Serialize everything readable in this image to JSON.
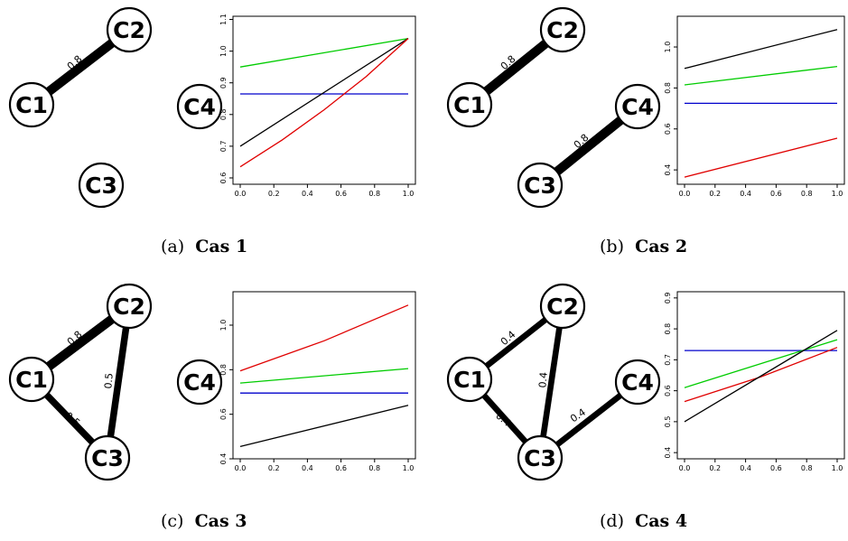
{
  "chart_data": [
    {
      "type": "line",
      "caption_letter": "(a)",
      "caption_title": "Cas 1",
      "network": {
        "nodes": [
          "C1",
          "C2",
          "C3",
          "C4"
        ],
        "edges": [
          {
            "from": "C1",
            "to": "C2",
            "weight": "0.8"
          }
        ]
      },
      "x_ticks": [
        "0.0",
        "0.2",
        "0.4",
        "0.6",
        "0.8",
        "1.0"
      ],
      "y_ticks": [
        "0.6",
        "0.7",
        "0.8",
        "0.9",
        "1.0",
        "1.1"
      ],
      "xlim": [
        0,
        1
      ],
      "ylim": [
        0.58,
        1.11
      ],
      "series": [
        {
          "color": "#00cc00",
          "x": [
            0,
            1
          ],
          "y": [
            0.95,
            1.04
          ]
        },
        {
          "color": "#0000cc",
          "x": [
            0,
            1
          ],
          "y": [
            0.865,
            0.865
          ]
        },
        {
          "color": "#000000",
          "x": [
            0,
            1
          ],
          "y": [
            0.7,
            1.04
          ]
        },
        {
          "color": "#e00000",
          "x": [
            0,
            0.25,
            0.5,
            0.75,
            1
          ],
          "y": [
            0.635,
            0.72,
            0.815,
            0.92,
            1.04
          ]
        }
      ]
    },
    {
      "type": "line",
      "caption_letter": "(b)",
      "caption_title": "Cas 2",
      "network": {
        "nodes": [
          "C1",
          "C2",
          "C3",
          "C4"
        ],
        "edges": [
          {
            "from": "C1",
            "to": "C2",
            "weight": "0.8"
          },
          {
            "from": "C3",
            "to": "C4",
            "weight": "0.8"
          }
        ]
      },
      "x_ticks": [
        "0.0",
        "0.2",
        "0.4",
        "0.6",
        "0.8",
        "1.0"
      ],
      "y_ticks": [
        "0.4",
        "0.6",
        "0.8",
        "1.0"
      ],
      "xlim": [
        0,
        1
      ],
      "ylim": [
        0.33,
        1.15
      ],
      "series": [
        {
          "color": "#000000",
          "x": [
            0,
            1
          ],
          "y": [
            0.895,
            1.085
          ]
        },
        {
          "color": "#00cc00",
          "x": [
            0,
            1
          ],
          "y": [
            0.815,
            0.905
          ]
        },
        {
          "color": "#0000cc",
          "x": [
            0,
            1
          ],
          "y": [
            0.725,
            0.725
          ]
        },
        {
          "color": "#e00000",
          "x": [
            0,
            1
          ],
          "y": [
            0.365,
            0.555
          ]
        }
      ]
    },
    {
      "type": "line",
      "caption_letter": "(c)",
      "caption_title": "Cas 3",
      "network": {
        "nodes": [
          "C1",
          "C2",
          "C3",
          "C4"
        ],
        "edges": [
          {
            "from": "C1",
            "to": "C2",
            "weight": "0.8"
          },
          {
            "from": "C2",
            "to": "C3",
            "weight": "0.5"
          },
          {
            "from": "C1",
            "to": "C3",
            "weight": "0.5"
          }
        ]
      },
      "x_ticks": [
        "0.0",
        "0.2",
        "0.4",
        "0.6",
        "0.8",
        "1.0"
      ],
      "y_ticks": [
        "0.4",
        "0.6",
        "0.8",
        "1.0"
      ],
      "xlim": [
        0,
        1
      ],
      "ylim": [
        0.4,
        1.15
      ],
      "series": [
        {
          "color": "#e00000",
          "x": [
            0,
            0.5,
            1
          ],
          "y": [
            0.795,
            0.93,
            1.09
          ]
        },
        {
          "color": "#00cc00",
          "x": [
            0,
            1
          ],
          "y": [
            0.74,
            0.805
          ]
        },
        {
          "color": "#0000cc",
          "x": [
            0,
            1
          ],
          "y": [
            0.695,
            0.695
          ]
        },
        {
          "color": "#000000",
          "x": [
            0,
            1
          ],
          "y": [
            0.455,
            0.64
          ]
        }
      ]
    },
    {
      "type": "line",
      "caption_letter": "(d)",
      "caption_title": "Cas 4",
      "network": {
        "nodes": [
          "C1",
          "C2",
          "C3",
          "C4"
        ],
        "edges": [
          {
            "from": "C1",
            "to": "C2",
            "weight": "0.4"
          },
          {
            "from": "C2",
            "to": "C3",
            "weight": "0.4"
          },
          {
            "from": "C1",
            "to": "C3",
            "weight": "0.4"
          },
          {
            "from": "C3",
            "to": "C4",
            "weight": "0.4"
          }
        ]
      },
      "x_ticks": [
        "0.0",
        "0.2",
        "0.4",
        "0.6",
        "0.8",
        "1.0"
      ],
      "y_ticks": [
        "0.4",
        "0.5",
        "0.6",
        "0.7",
        "0.8",
        "0.9"
      ],
      "xlim": [
        0,
        1
      ],
      "ylim": [
        0.38,
        0.92
      ],
      "series": [
        {
          "color": "#0000cc",
          "x": [
            0,
            1
          ],
          "y": [
            0.73,
            0.73
          ]
        },
        {
          "color": "#00cc00",
          "x": [
            0,
            1
          ],
          "y": [
            0.61,
            0.765
          ]
        },
        {
          "color": "#e00000",
          "x": [
            0,
            0.5,
            1
          ],
          "y": [
            0.565,
            0.645,
            0.74
          ]
        },
        {
          "color": "#000000",
          "x": [
            0,
            1
          ],
          "y": [
            0.5,
            0.795
          ]
        }
      ]
    }
  ]
}
